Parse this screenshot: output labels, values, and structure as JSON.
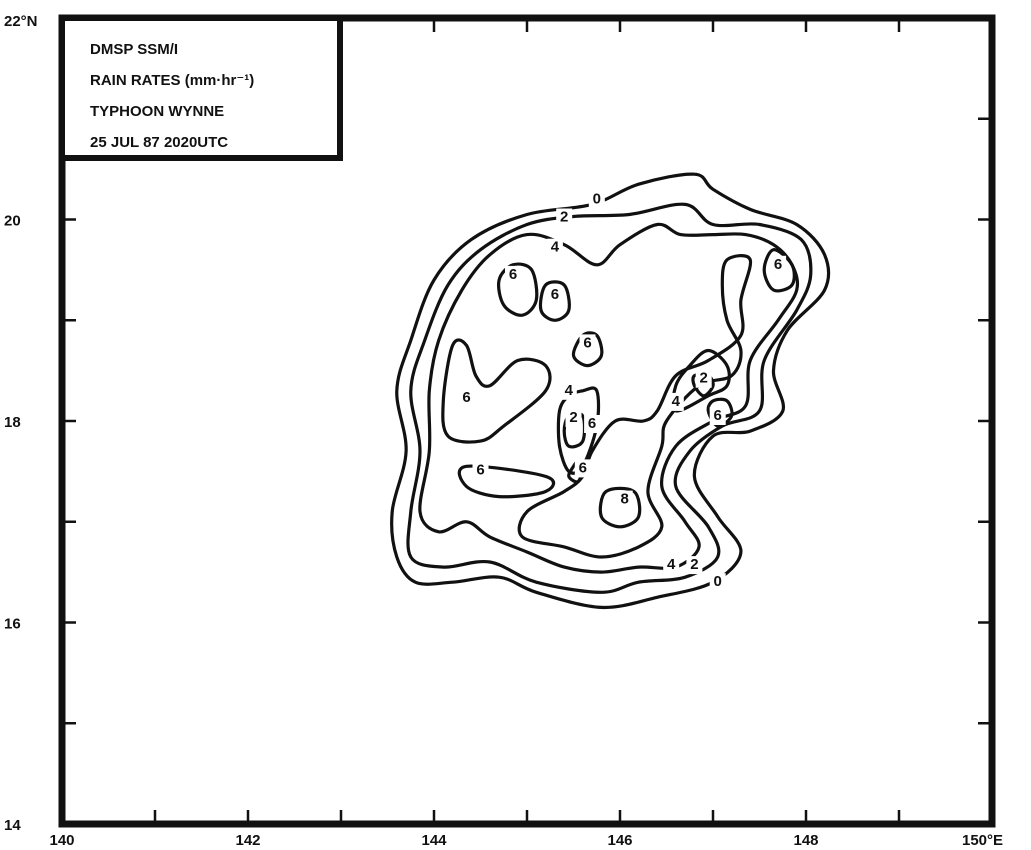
{
  "colors": {
    "ink": "#111111",
    "paper": "#ffffff"
  },
  "legend_lines": [
    "DMSP SSM/I",
    "RAIN RATES (mm·hr⁻¹)",
    "TYPHOON  WYNNE",
    "25 JUL 87 2020UTC"
  ],
  "chart_data": {
    "type": "contour",
    "title": "",
    "legend_placement": "top-left",
    "grid": false,
    "xlim": [
      140,
      150
    ],
    "ylim": [
      14,
      22
    ],
    "x_ticks": [
      140,
      141,
      142,
      143,
      144,
      145,
      146,
      147,
      148,
      149,
      150
    ],
    "y_ticks": [
      14,
      15,
      16,
      17,
      18,
      19,
      20,
      21,
      22
    ],
    "x_tick_labels": [
      {
        "value": 140,
        "text": "140"
      },
      {
        "value": 142,
        "text": "142"
      },
      {
        "value": 144,
        "text": "144"
      },
      {
        "value": 146,
        "text": "146"
      },
      {
        "value": 148,
        "text": "148"
      },
      {
        "value": 150,
        "text": "150°E"
      }
    ],
    "y_tick_labels": [
      {
        "value": 14,
        "text": "14"
      },
      {
        "value": 16,
        "text": "16"
      },
      {
        "value": 18,
        "text": "18"
      },
      {
        "value": 20,
        "text": "20"
      },
      {
        "value": 22,
        "text": "22°N"
      }
    ],
    "contours": [
      {
        "level": "0",
        "points": [
          [
            145.7,
            20.15
          ],
          [
            146.2,
            20.35
          ],
          [
            146.8,
            20.45
          ],
          [
            147.0,
            20.3
          ],
          [
            147.4,
            20.1
          ],
          [
            147.9,
            19.95
          ],
          [
            148.2,
            19.65
          ],
          [
            148.2,
            19.3
          ],
          [
            147.8,
            18.9
          ],
          [
            147.65,
            18.5
          ],
          [
            147.75,
            18.1
          ],
          [
            147.4,
            17.9
          ],
          [
            147.0,
            17.85
          ],
          [
            146.8,
            17.45
          ],
          [
            147.05,
            17.05
          ],
          [
            147.3,
            16.7
          ],
          [
            147.0,
            16.4
          ],
          [
            146.4,
            16.25
          ],
          [
            145.8,
            16.15
          ],
          [
            145.1,
            16.3
          ],
          [
            144.7,
            16.45
          ],
          [
            144.2,
            16.4
          ],
          [
            143.8,
            16.4
          ],
          [
            143.6,
            16.65
          ],
          [
            143.55,
            17.1
          ],
          [
            143.7,
            17.7
          ],
          [
            143.6,
            18.3
          ],
          [
            143.75,
            18.8
          ],
          [
            144.0,
            19.4
          ],
          [
            144.4,
            19.8
          ],
          [
            145.0,
            20.05
          ],
          [
            145.7,
            20.15
          ]
        ]
      },
      {
        "level": "2",
        "points": [
          [
            145.5,
            20.03
          ],
          [
            146.1,
            20.05
          ],
          [
            146.7,
            20.15
          ],
          [
            147.0,
            19.95
          ],
          [
            147.5,
            19.95
          ],
          [
            147.95,
            19.8
          ],
          [
            148.05,
            19.45
          ],
          [
            147.9,
            19.1
          ],
          [
            147.55,
            18.6
          ],
          [
            147.5,
            18.1
          ],
          [
            147.1,
            17.95
          ],
          [
            146.75,
            17.7
          ],
          [
            146.6,
            17.35
          ],
          [
            146.95,
            16.95
          ],
          [
            147.05,
            16.65
          ],
          [
            146.7,
            16.45
          ],
          [
            146.2,
            16.4
          ],
          [
            145.8,
            16.3
          ],
          [
            145.1,
            16.4
          ],
          [
            144.6,
            16.6
          ],
          [
            144.1,
            16.55
          ],
          [
            143.75,
            16.65
          ],
          [
            143.75,
            17.1
          ],
          [
            143.85,
            17.7
          ],
          [
            143.75,
            18.3
          ],
          [
            143.9,
            18.8
          ],
          [
            144.15,
            19.35
          ],
          [
            144.5,
            19.7
          ],
          [
            145.0,
            19.95
          ],
          [
            145.5,
            20.03
          ]
        ]
      },
      {
        "level": "4",
        "points": [
          [
            145.0,
            19.85
          ],
          [
            145.4,
            19.75
          ],
          [
            145.75,
            19.55
          ],
          [
            146.0,
            19.75
          ],
          [
            146.4,
            19.95
          ],
          [
            146.65,
            19.85
          ],
          [
            147.0,
            19.85
          ],
          [
            147.35,
            19.85
          ],
          [
            147.65,
            19.75
          ],
          [
            147.85,
            19.55
          ],
          [
            147.9,
            19.3
          ],
          [
            147.7,
            19.0
          ],
          [
            147.4,
            18.6
          ],
          [
            147.35,
            18.15
          ],
          [
            147.0,
            18.0
          ],
          [
            146.6,
            17.75
          ],
          [
            146.45,
            17.35
          ],
          [
            146.7,
            17.0
          ],
          [
            146.85,
            16.75
          ],
          [
            146.6,
            16.55
          ],
          [
            146.2,
            16.55
          ],
          [
            145.8,
            16.5
          ],
          [
            145.4,
            16.55
          ],
          [
            145.0,
            16.7
          ],
          [
            144.6,
            16.85
          ],
          [
            144.35,
            17.0
          ],
          [
            144.05,
            16.9
          ],
          [
            143.85,
            17.1
          ],
          [
            143.95,
            17.7
          ],
          [
            143.95,
            18.3
          ],
          [
            144.05,
            18.8
          ],
          [
            144.3,
            19.3
          ],
          [
            144.6,
            19.65
          ],
          [
            145.0,
            19.85
          ]
        ]
      },
      {
        "level": "6",
        "points": [
          [
            144.85,
            19.55
          ],
          [
            145.05,
            19.5
          ],
          [
            145.1,
            19.2
          ],
          [
            144.95,
            19.05
          ],
          [
            144.75,
            19.15
          ],
          [
            144.7,
            19.4
          ],
          [
            144.85,
            19.55
          ]
        ]
      },
      {
        "level": "6",
        "points": [
          [
            145.2,
            19.35
          ],
          [
            145.4,
            19.35
          ],
          [
            145.45,
            19.1
          ],
          [
            145.3,
            19.0
          ],
          [
            145.15,
            19.1
          ],
          [
            145.2,
            19.35
          ]
        ]
      },
      {
        "level": "6",
        "points": [
          [
            145.6,
            18.85
          ],
          [
            145.75,
            18.85
          ],
          [
            145.8,
            18.65
          ],
          [
            145.65,
            18.55
          ],
          [
            145.5,
            18.65
          ],
          [
            145.6,
            18.85
          ]
        ]
      },
      {
        "level": "6",
        "points": [
          [
            144.2,
            18.75
          ],
          [
            144.35,
            18.75
          ],
          [
            144.45,
            18.45
          ],
          [
            144.6,
            18.35
          ],
          [
            144.9,
            18.6
          ],
          [
            145.2,
            18.55
          ],
          [
            145.2,
            18.3
          ],
          [
            144.75,
            17.95
          ],
          [
            144.5,
            17.8
          ],
          [
            144.15,
            17.85
          ],
          [
            144.1,
            18.2
          ],
          [
            144.2,
            18.75
          ]
        ]
      },
      {
        "level": "6",
        "points": [
          [
            144.35,
            17.55
          ],
          [
            145.2,
            17.45
          ],
          [
            145.2,
            17.3
          ],
          [
            144.7,
            17.25
          ],
          [
            144.35,
            17.35
          ],
          [
            144.35,
            17.55
          ]
        ]
      },
      {
        "level": "6",
        "points": [
          [
            147.65,
            19.7
          ],
          [
            147.85,
            19.55
          ],
          [
            147.85,
            19.35
          ],
          [
            147.65,
            19.3
          ],
          [
            147.55,
            19.5
          ],
          [
            147.65,
            19.7
          ]
        ]
      },
      {
        "level": "6",
        "points": [
          [
            147.15,
            19.6
          ],
          [
            147.4,
            19.6
          ],
          [
            147.3,
            19.2
          ],
          [
            147.3,
            18.85
          ],
          [
            146.95,
            18.6
          ],
          [
            146.6,
            18.45
          ],
          [
            146.4,
            18.1
          ],
          [
            146.25,
            18.0
          ],
          [
            145.95,
            18.0
          ],
          [
            145.7,
            17.7
          ],
          [
            145.6,
            17.45
          ],
          [
            145.4,
            17.3
          ],
          [
            145.0,
            17.1
          ],
          [
            144.95,
            16.85
          ],
          [
            145.4,
            16.75
          ],
          [
            145.8,
            16.65
          ],
          [
            146.2,
            16.75
          ],
          [
            146.45,
            16.95
          ],
          [
            146.3,
            17.3
          ],
          [
            146.45,
            17.75
          ],
          [
            146.5,
            18.0
          ],
          [
            146.85,
            18.35
          ],
          [
            147.2,
            18.45
          ],
          [
            147.3,
            18.7
          ],
          [
            147.15,
            19.0
          ],
          [
            147.1,
            19.35
          ],
          [
            147.15,
            19.6
          ]
        ]
      },
      {
        "level": "4",
        "points": [
          [
            146.6,
            18.35
          ],
          [
            146.75,
            18.55
          ],
          [
            146.95,
            18.7
          ],
          [
            147.15,
            18.55
          ],
          [
            147.15,
            18.35
          ],
          [
            146.95,
            18.25
          ],
          [
            146.6,
            18.1
          ],
          [
            146.6,
            18.35
          ]
        ]
      },
      {
        "level": "2",
        "points": [
          [
            146.8,
            18.45
          ],
          [
            146.95,
            18.45
          ],
          [
            147.0,
            18.35
          ],
          [
            146.9,
            18.25
          ],
          [
            146.8,
            18.35
          ],
          [
            146.8,
            18.45
          ]
        ]
      },
      {
        "level": "6",
        "points": [
          [
            147.0,
            18.2
          ],
          [
            147.15,
            18.2
          ],
          [
            147.2,
            18.05
          ],
          [
            147.05,
            17.95
          ],
          [
            146.95,
            18.1
          ],
          [
            147.0,
            18.2
          ]
        ]
      },
      {
        "level": "4",
        "points": [
          [
            145.6,
            18.3
          ],
          [
            145.75,
            18.3
          ],
          [
            145.75,
            17.95
          ],
          [
            145.6,
            17.55
          ],
          [
            145.45,
            17.5
          ],
          [
            145.35,
            17.75
          ],
          [
            145.35,
            18.1
          ],
          [
            145.45,
            18.25
          ],
          [
            145.6,
            18.3
          ]
        ]
      },
      {
        "level": "2",
        "points": [
          [
            145.45,
            18.05
          ],
          [
            145.6,
            18.05
          ],
          [
            145.6,
            17.8
          ],
          [
            145.45,
            17.75
          ],
          [
            145.4,
            17.9
          ],
          [
            145.45,
            18.05
          ]
        ]
      },
      {
        "level": "6",
        "points": [
          [
            145.55,
            17.6
          ],
          [
            145.6,
            17.55
          ],
          [
            145.55,
            17.4
          ],
          [
            145.45,
            17.45
          ],
          [
            145.5,
            17.55
          ],
          [
            145.55,
            17.6
          ]
        ]
      },
      {
        "level": "8",
        "points": [
          [
            145.85,
            17.3
          ],
          [
            146.15,
            17.3
          ],
          [
            146.2,
            17.05
          ],
          [
            146.0,
            16.95
          ],
          [
            145.8,
            17.05
          ],
          [
            145.85,
            17.3
          ]
        ]
      }
    ],
    "contour_labels": [
      {
        "text": "0",
        "x": 145.75,
        "y": 20.2
      },
      {
        "text": "2",
        "x": 145.4,
        "y": 20.02
      },
      {
        "text": "4",
        "x": 145.3,
        "y": 19.72
      },
      {
        "text": "6",
        "x": 144.85,
        "y": 19.45
      },
      {
        "text": "6",
        "x": 145.3,
        "y": 19.25
      },
      {
        "text": "6",
        "x": 145.65,
        "y": 18.77
      },
      {
        "text": "6",
        "x": 144.35,
        "y": 18.23
      },
      {
        "text": "4",
        "x": 145.45,
        "y": 18.3
      },
      {
        "text": "2",
        "x": 145.5,
        "y": 18.03
      },
      {
        "text": "6",
        "x": 145.7,
        "y": 17.97
      },
      {
        "text": "6",
        "x": 144.5,
        "y": 17.51
      },
      {
        "text": "6",
        "x": 145.6,
        "y": 17.53
      },
      {
        "text": "8",
        "x": 146.05,
        "y": 17.22
      },
      {
        "text": "2",
        "x": 146.9,
        "y": 18.42
      },
      {
        "text": "4",
        "x": 146.6,
        "y": 18.19
      },
      {
        "text": "6",
        "x": 147.05,
        "y": 18.05
      },
      {
        "text": "6",
        "x": 147.7,
        "y": 19.55
      },
      {
        "text": "4",
        "x": 146.55,
        "y": 16.57
      },
      {
        "text": "2",
        "x": 146.8,
        "y": 16.57
      },
      {
        "text": "0",
        "x": 147.05,
        "y": 16.4
      }
    ]
  }
}
